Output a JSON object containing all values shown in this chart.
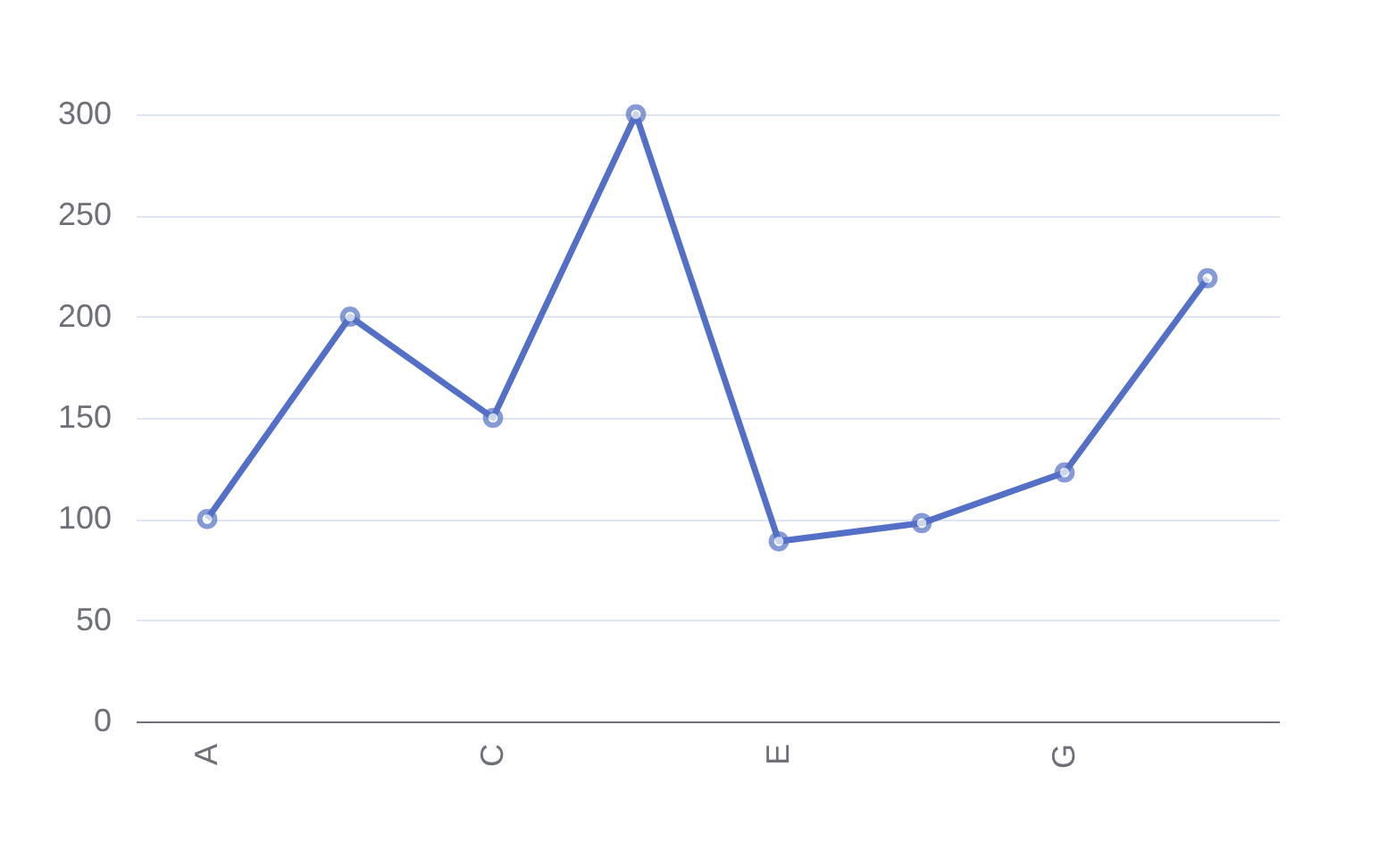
{
  "chart_data": {
    "type": "line",
    "categories": [
      "A",
      null,
      "C",
      null,
      "E",
      null,
      "G",
      null
    ],
    "series": [
      {
        "color": "#5470c6",
        "values": [
          100,
          200,
          150,
          300,
          89,
          98,
          123,
          219
        ]
      }
    ],
    "ylim": [
      0,
      300
    ],
    "yticks": [
      0,
      50,
      100,
      150,
      200,
      250,
      300
    ],
    "grid": "y",
    "marker": "circle",
    "line_style": "solid"
  }
}
